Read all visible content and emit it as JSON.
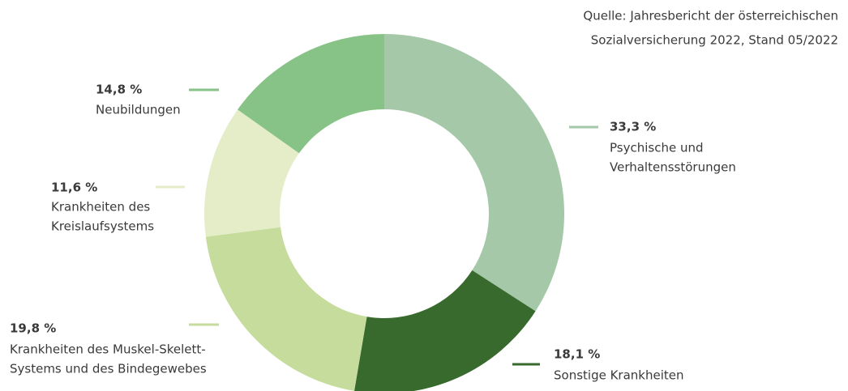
{
  "chart_data": {
    "type": "pie",
    "source": [
      "Quelle: Jahresbericht der österreichischen",
      "Sozialversicherung 2022, Stand 05/2022"
    ],
    "categories": [
      [
        "Psychische und",
        "Verhaltensstörungen"
      ],
      [
        "Sonstige Krankheiten"
      ],
      [
        "Krankheiten des Muskel-Skelett-",
        "Systems und des Bindegewebes"
      ],
      [
        "Krankheiten des",
        "Kreislaufsystems"
      ],
      [
        "Neubildungen"
      ]
    ],
    "values": [
      33.3,
      18.1,
      19.8,
      11.6,
      14.8
    ],
    "value_labels": [
      "33,3 %",
      "18,1 %",
      "19,8 %",
      "11,6 %",
      "14,8 %"
    ],
    "colors": [
      "#a5c8a8",
      "#376a2c",
      "#c5dc9c",
      "#e4edc8",
      "#87c386"
    ]
  }
}
